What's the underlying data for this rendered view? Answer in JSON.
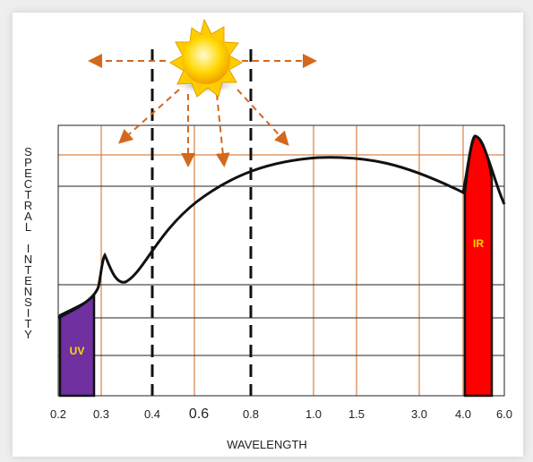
{
  "y_label": "SPECTRAL INTENSITY",
  "x_label": "WAVELENGTH",
  "x_ticks": [
    "0.2",
    "0.3",
    "0.4",
    "0.6",
    "0.8",
    "1.0",
    "1.5",
    "3.0",
    "4.0",
    "6.0"
  ],
  "regions": {
    "uv": "UV",
    "ir": "IR"
  }
}
